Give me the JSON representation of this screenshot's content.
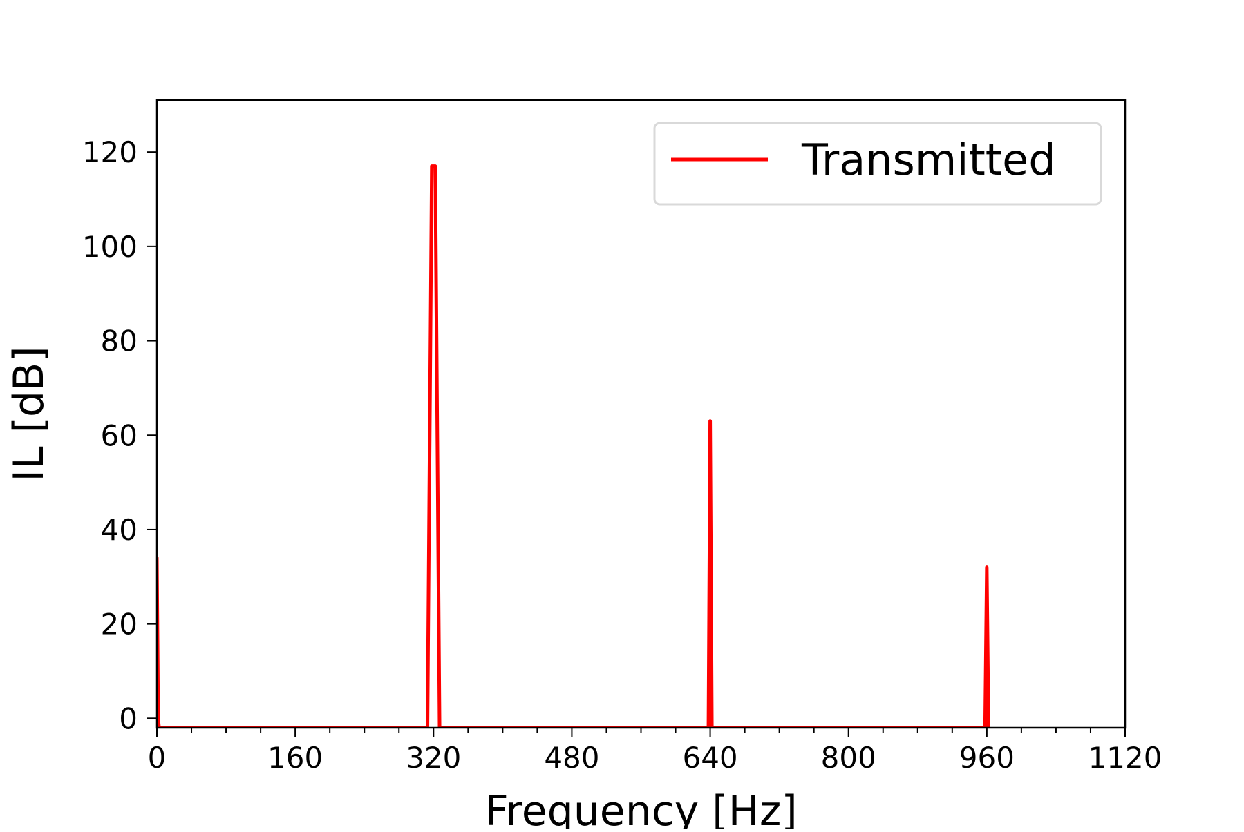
{
  "chart_data": {
    "type": "line",
    "xlabel": "Frequency [Hz]",
    "ylabel": "IL [dB]",
    "xlim": [
      0,
      1120
    ],
    "ylim": [
      -2,
      131
    ],
    "xticks_major": [
      0,
      160,
      320,
      480,
      640,
      800,
      960,
      1120
    ],
    "xtick_labels": [
      "0",
      "160",
      "320",
      "480",
      "640",
      "800",
      "960",
      "1120"
    ],
    "xticks_minor_step": 40,
    "yticks": [
      0,
      20,
      40,
      60,
      80,
      100,
      120
    ],
    "ytick_labels": [
      "0",
      "20",
      "40",
      "60",
      "80",
      "100",
      "120"
    ],
    "grid": false,
    "legend_position": "top-right",
    "series": [
      {
        "name": "Transmitted",
        "color": "#ff0000",
        "x": [
          0,
          1.5,
          2.5,
          313,
          318,
          320,
          322,
          327,
          638,
          640,
          642,
          958,
          960,
          962
        ],
        "y": [
          34,
          0,
          -2,
          -2,
          117,
          117,
          117,
          -2,
          -2,
          63,
          -2,
          -2,
          32,
          -2
        ]
      }
    ]
  }
}
